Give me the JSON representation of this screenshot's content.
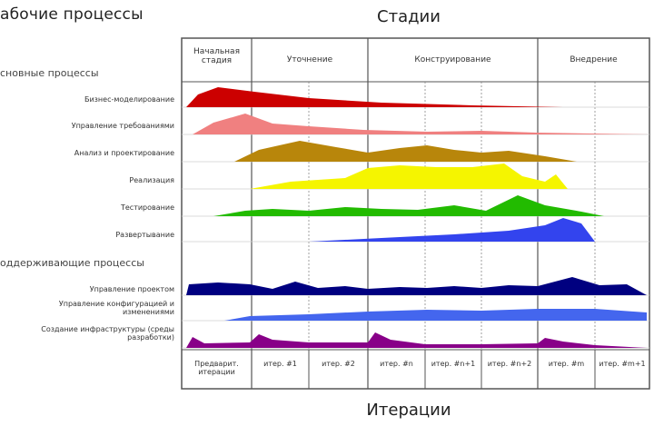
{
  "titles": {
    "workflows": "абочие процессы",
    "phases": "Стадии",
    "iterations": "Итерации"
  },
  "sections": {
    "core": "сновные процессы",
    "support": "оддерживающие процессы"
  },
  "phases": [
    {
      "label": "Начальная стадия"
    },
    {
      "label": "Уточнение"
    },
    {
      "label": "Конструирование"
    },
    {
      "label": "Внедрение"
    }
  ],
  "workflows": [
    {
      "label": "Бизнес-моделирование",
      "color": "#cc0000"
    },
    {
      "label": "Управление требованиями",
      "color": "#f08080"
    },
    {
      "label": "Анализ и проектирование",
      "color": "#b8860b"
    },
    {
      "label": "Реализация",
      "color": "#f5f500"
    },
    {
      "label": "Тестирование",
      "color": "#22bb00"
    },
    {
      "label": "Развертывание",
      "color": "#3344ee"
    }
  ],
  "support_workflows": [
    {
      "label": "Управление проектом",
      "color": "#000080"
    },
    {
      "label": "Управление конфигурацией и изменениями",
      "color": "#4466ee"
    },
    {
      "label": "Создание инфраструктуры (среды разработки)",
      "color": "#880088"
    }
  ],
  "iterations": [
    {
      "label": "Предварит. итерации"
    },
    {
      "label": "итер. #1"
    },
    {
      "label": "итер. #2"
    },
    {
      "label": "итер. #n"
    },
    {
      "label": "итер. #n+1"
    },
    {
      "label": "итер. #n+2"
    },
    {
      "label": "итер. #m"
    },
    {
      "label": "итер. #m+1"
    }
  ]
}
